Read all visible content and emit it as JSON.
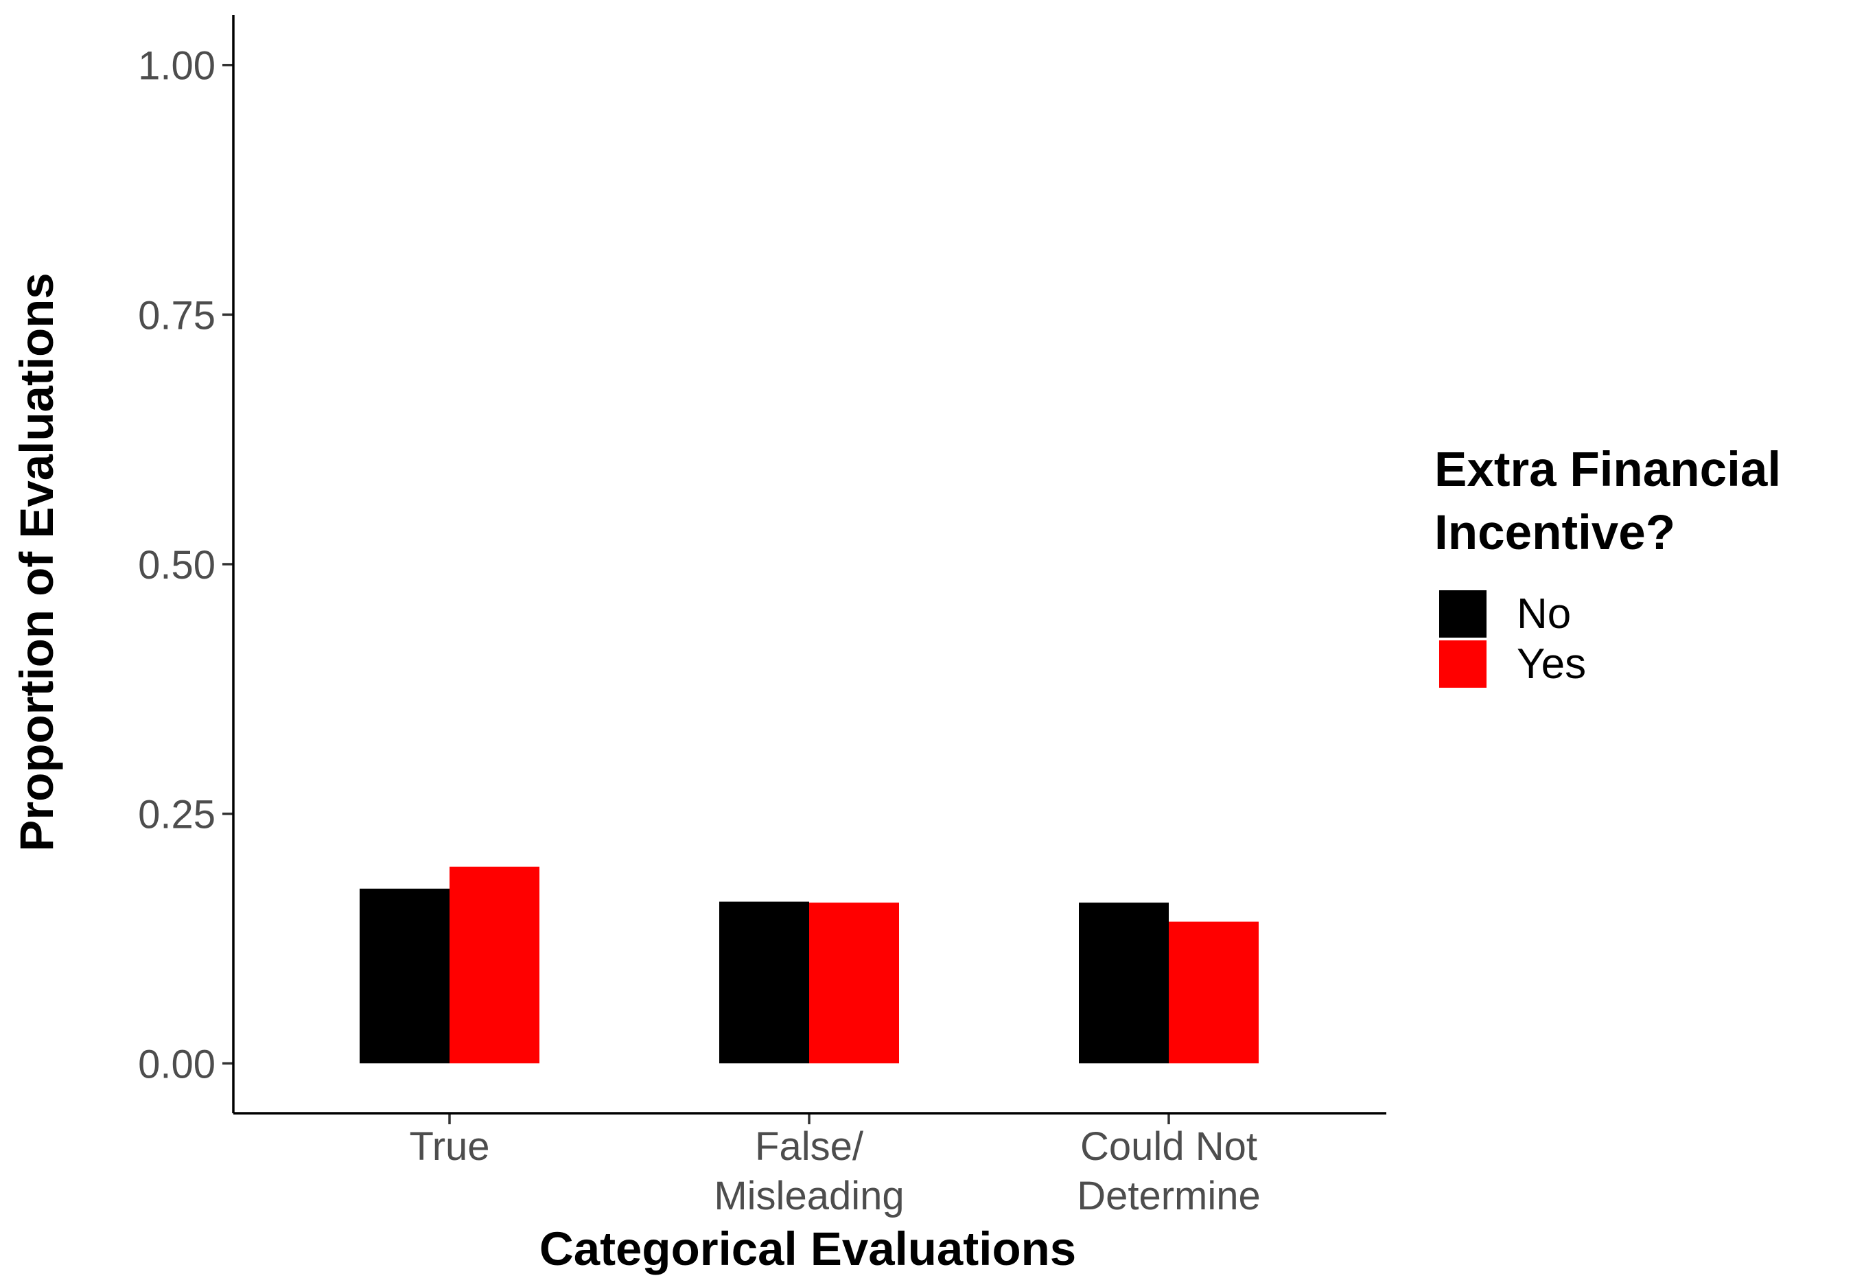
{
  "chart_data": {
    "type": "bar",
    "categories": [
      [
        "True"
      ],
      [
        "False/",
        "Misleading"
      ],
      [
        "Could Not",
        "Determine"
      ]
    ],
    "series": [
      {
        "name": "No",
        "color": "#000000",
        "values": [
          0.175,
          0.162,
          0.161
        ]
      },
      {
        "name": "Yes",
        "color": "#ff0000",
        "values": [
          0.197,
          0.161,
          0.142
        ]
      }
    ],
    "xlabel": "Categorical Evaluations",
    "ylabel": "Proportion of Evaluations",
    "ylim": [
      -0.05,
      1.05
    ],
    "yticks": [
      "0.00",
      "0.25",
      "0.50",
      "0.75",
      "1.00"
    ],
    "legend": {
      "title_lines": [
        "Extra Financial",
        "Incentive?"
      ],
      "placement": "right"
    },
    "grid": false
  }
}
